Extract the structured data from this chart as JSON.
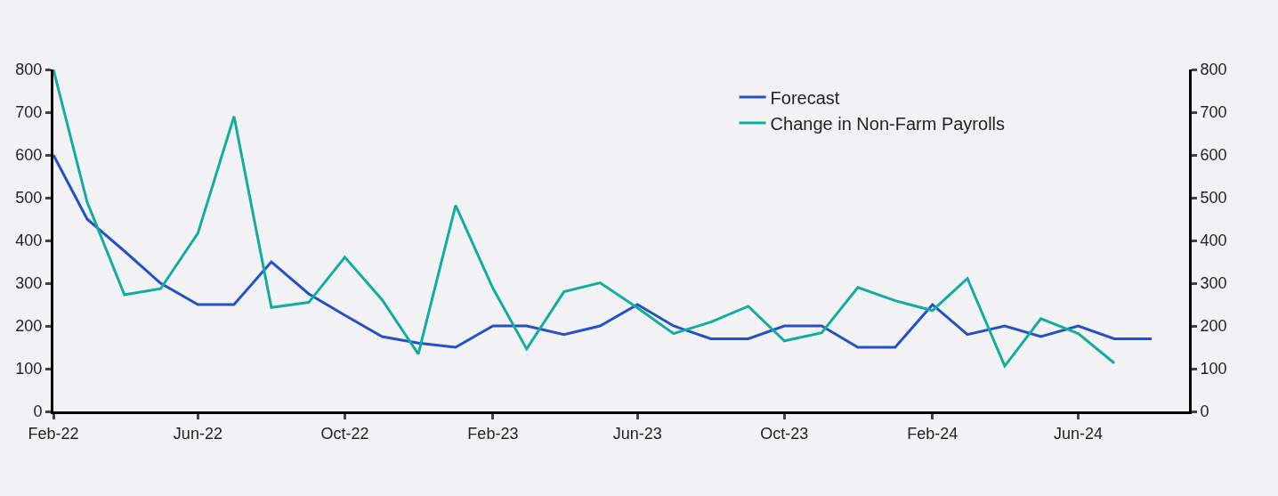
{
  "chart_data": {
    "type": "line",
    "x": [
      "2022-02",
      "2022-03",
      "2022-04",
      "2022-05",
      "2022-06",
      "2022-07",
      "2022-08",
      "2022-09",
      "2022-10",
      "2022-11",
      "2022-12",
      "2023-01",
      "2023-02",
      "2023-03",
      "2023-04",
      "2023-05",
      "2023-06",
      "2023-07",
      "2023-08",
      "2023-09",
      "2023-10",
      "2023-11",
      "2023-12",
      "2024-01",
      "2024-02",
      "2024-03",
      "2024-04",
      "2024-05",
      "2024-06",
      "2024-07",
      "2024-08"
    ],
    "series": [
      {
        "name": "Forecast",
        "color": "#2450c8",
        "values": [
          600,
          450,
          375,
          300,
          250,
          250,
          350,
          275,
          225,
          175,
          160,
          150,
          200,
          200,
          180,
          200,
          250,
          200,
          170,
          170,
          200,
          200,
          150,
          150,
          250,
          180,
          200,
          175,
          200,
          170,
          170
        ]
      },
      {
        "name": "Change in Non-Farm Payrolls",
        "color": "#12ad9f",
        "values": [
          800,
          490,
          273,
          287,
          417,
          690,
          243,
          255,
          361,
          261,
          134,
          482,
          288,
          146,
          280,
          301,
          242,
          182,
          209,
          246,
          165,
          184,
          290,
          259,
          236,
          311,
          106,
          217,
          182,
          113,
          null
        ]
      }
    ],
    "xlim": [
      "2022-02",
      "2024-09"
    ],
    "xticks": [
      {
        "value": "2022-02",
        "label": "Feb-22"
      },
      {
        "value": "2022-06",
        "label": "Jun-22"
      },
      {
        "value": "2022-10",
        "label": "Oct-22"
      },
      {
        "value": "2023-02",
        "label": "Feb-23"
      },
      {
        "value": "2023-06",
        "label": "Jun-23"
      },
      {
        "value": "2023-10",
        "label": "Oct-23"
      },
      {
        "value": "2024-02",
        "label": "Feb-24"
      },
      {
        "value": "2024-06",
        "label": "Jun-24"
      }
    ],
    "ylim": [
      0,
      800
    ],
    "yticks": [
      0,
      100,
      200,
      300,
      400,
      500,
      600,
      700,
      800
    ],
    "y2lim": [
      0,
      800
    ],
    "y2ticks": [
      0,
      100,
      200,
      300,
      400,
      500,
      600,
      700,
      800
    ],
    "grid": false,
    "legend": "top right",
    "marker": "none",
    "line_style": "solid"
  }
}
